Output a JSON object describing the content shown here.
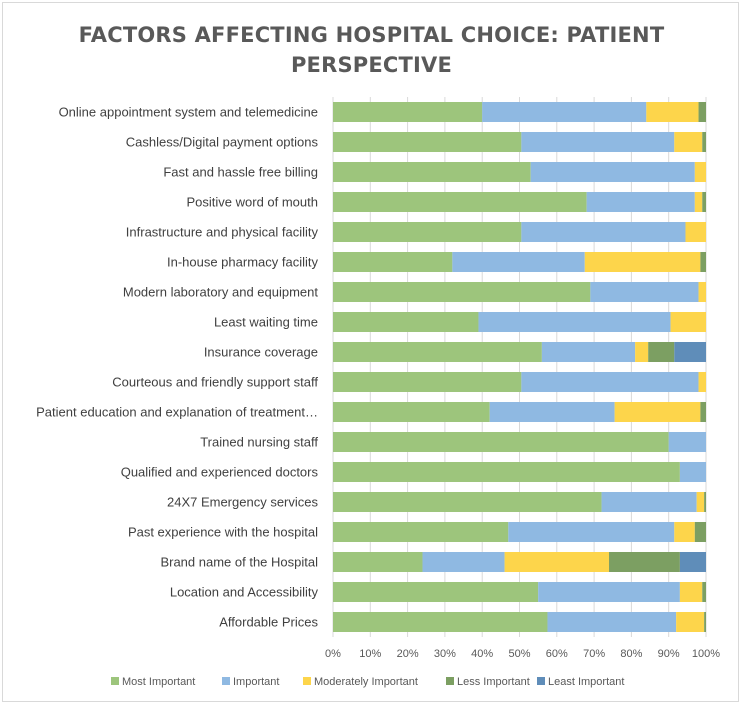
{
  "chart_data": {
    "type": "bar",
    "orientation": "horizontal",
    "stacked": "percent",
    "title": "FACTORS AFFECTING HOSPITAL CHOICE: PATIENT PERSPECTIVE",
    "title_lines": [
      "FACTORS AFFECTING HOSPITAL CHOICE: PATIENT",
      "PERSPECTIVE"
    ],
    "xlim": [
      0,
      100
    ],
    "x_ticks": [
      "0%",
      "10%",
      "20%",
      "30%",
      "40%",
      "50%",
      "60%",
      "70%",
      "80%",
      "90%",
      "100%"
    ],
    "grid": true,
    "legend_position": "bottom",
    "categories": [
      "Online appointment system and telemedicine",
      "Cashless/Digital payment options",
      "Fast and hassle free billing",
      "Positive word of mouth",
      "Infrastructure and physical facility",
      "In-house pharmacy facility",
      "Modern laboratory and equipment",
      "Least waiting time",
      "Insurance coverage",
      "Courteous and friendly support staff",
      "Patient education and explanation of treatment…",
      "Trained nursing staff",
      "Qualified and experienced doctors",
      "24X7 Emergency services",
      "Past experience with the hospital",
      "Brand name of the Hospital",
      "Location and Accessibility",
      "Affordable Prices"
    ],
    "series": [
      {
        "name": "Most Important",
        "color": "#9dc57c",
        "values": [
          40,
          50.5,
          53,
          68,
          50.5,
          32,
          69,
          39,
          56,
          50.5,
          42,
          90,
          93,
          72,
          47,
          24,
          55,
          57.5
        ]
      },
      {
        "name": "Important",
        "color": "#8fb9e2",
        "values": [
          44,
          41,
          44,
          29,
          44,
          35.5,
          29,
          51.5,
          25,
          47.5,
          33.5,
          10,
          7,
          25.5,
          44.5,
          22,
          38,
          34.5
        ]
      },
      {
        "name": "Moderately Important",
        "color": "#fdd54b",
        "values": [
          14,
          7.5,
          3,
          2,
          5.5,
          31,
          2,
          9.5,
          3.5,
          2,
          23,
          0,
          0,
          2,
          5.5,
          28,
          6,
          7.5
        ]
      },
      {
        "name": "Less Important",
        "color": "#7c9f62",
        "values": [
          2,
          1,
          0,
          1,
          0,
          1.5,
          0,
          0,
          7,
          0,
          1.5,
          0,
          0,
          0.5,
          3,
          19,
          1,
          0.5
        ]
      },
      {
        "name": "Least Important",
        "color": "#5f8db9",
        "values": [
          0,
          0,
          0,
          0,
          0,
          0,
          0,
          0,
          8.5,
          0,
          0,
          0,
          0,
          0,
          0,
          7,
          0,
          0
        ]
      }
    ]
  }
}
